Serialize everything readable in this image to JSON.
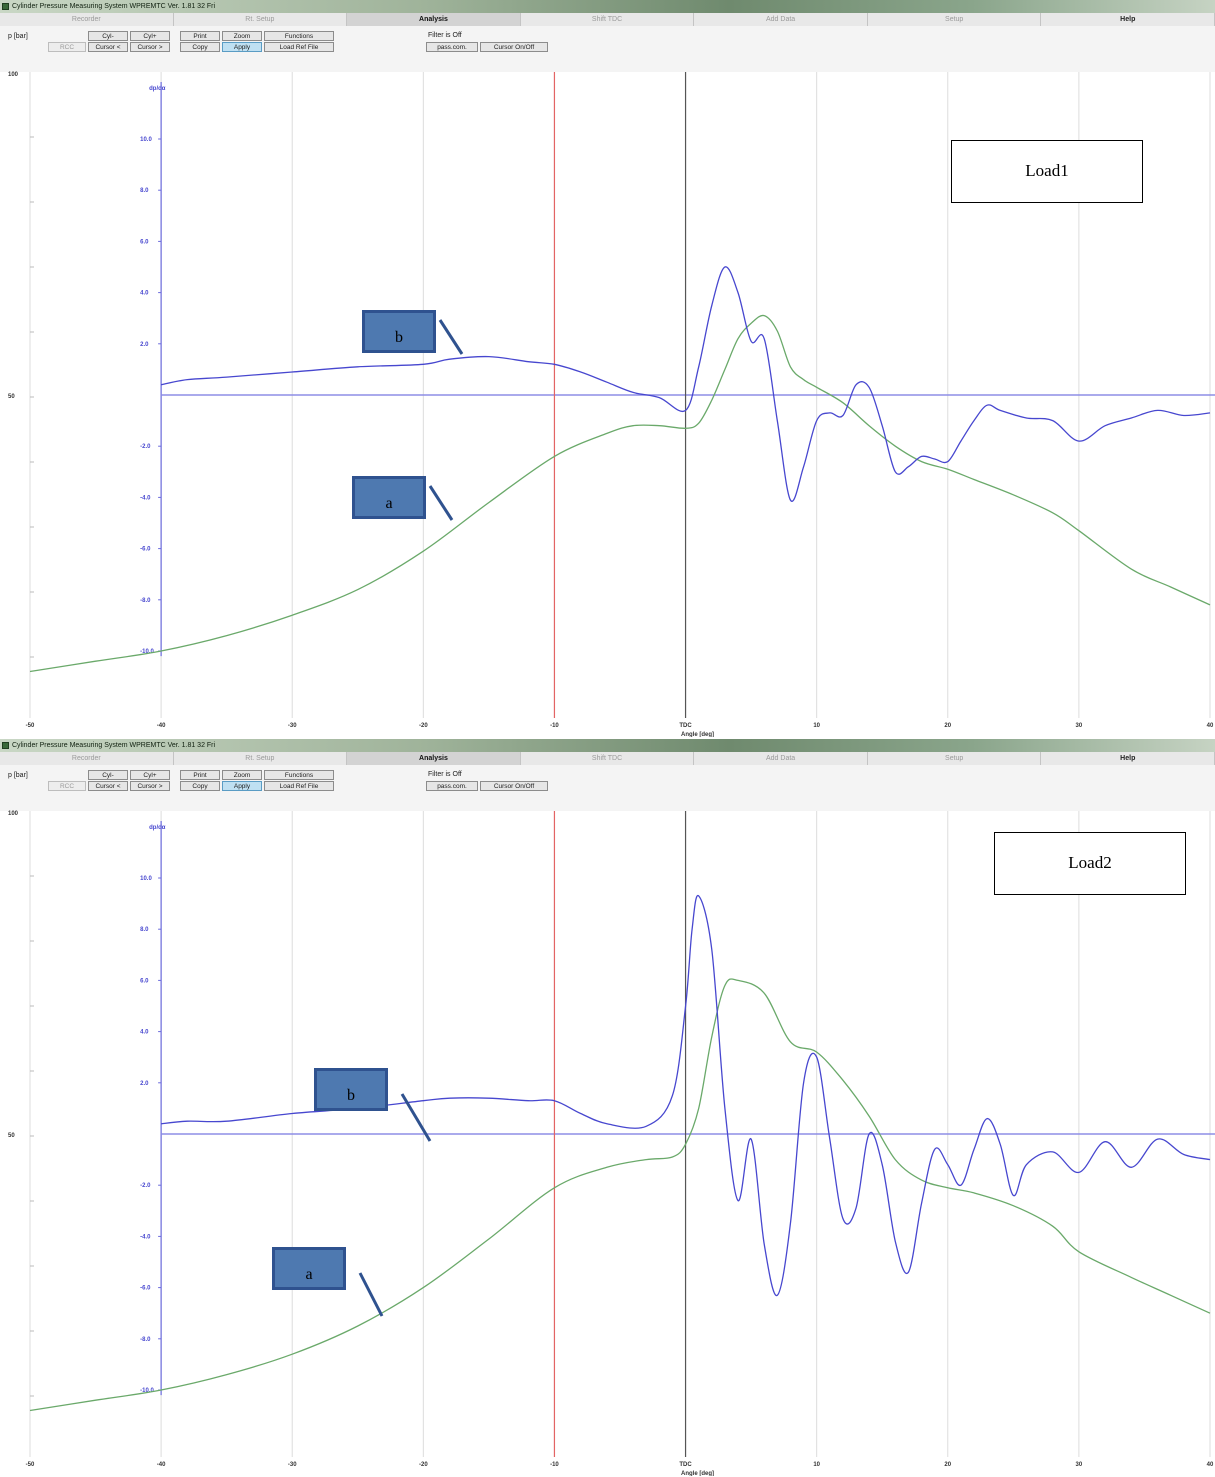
{
  "titlebar": {
    "text": "Cylinder Pressure Measuring System WPREMTC Ver. 1.81 32 Fri"
  },
  "tabs": [
    "Recorder",
    "Rt. Setup",
    "Analysis",
    "Shift TDC",
    "Add Data",
    "Setup",
    "Help"
  ],
  "toolbar": {
    "p_unit": "p [bar]",
    "rcc": "RCC",
    "cyl_minus": "Cyl-",
    "cyl_plus": "Cyl+",
    "print": "Print",
    "zoom": "Zoom",
    "functions": "Functions",
    "cursor_left": "Cursor <",
    "cursor_right": "Cursor >",
    "copy": "Copy",
    "apply": "Apply",
    "load_ref": "Load Ref File",
    "filter": "Filter is Off",
    "pass_com": "pass.com.",
    "cursor_onoff": "Cursor On/Off"
  },
  "colors": {
    "pressure_curve": "#6aa96a",
    "derivative_curve": "#4747cf",
    "derivative_axis": "#6b6bdd",
    "cursor_line": "#e36464",
    "tdc_line": "#555555",
    "grid": "#dcdcdc",
    "annotation_fill": "#4e79b0",
    "annotation_border": "#2f528f"
  },
  "chart_data": [
    {
      "type": "line",
      "title": "Load1",
      "xlabel": "Angle [deg]",
      "ylabel": "p [bar]",
      "y2label": "dp/dα",
      "xlim": [
        -50,
        40
      ],
      "x_ticks": [
        "-50",
        "-40",
        "-30",
        "-20",
        "-10",
        "TDC",
        "10",
        "20",
        "30",
        "40"
      ],
      "left_axis_ticks": [
        "100",
        "50"
      ],
      "y2lim": [
        -12,
        12
      ],
      "y2_ticks": [
        "10.0",
        "8.0",
        "6.0",
        "4.0",
        "2.0",
        "-2.0",
        "-4.0",
        "-6.0",
        "-8.0",
        "-10.0"
      ],
      "cursor_x": -10,
      "grid": true,
      "series": [
        {
          "name": "a",
          "x": [
            -50,
            -45,
            -40,
            -35,
            -30,
            -25,
            -20,
            -15,
            -10,
            -6,
            -4,
            -2,
            0,
            1,
            2,
            3,
            4,
            5,
            6,
            7,
            8,
            9,
            10,
            12,
            14,
            16,
            18,
            20,
            22,
            25,
            28,
            30,
            34,
            37,
            40
          ],
          "y": [
            -10.8,
            -10.4,
            -10.0,
            -9.4,
            -8.6,
            -7.6,
            -6.1,
            -4.2,
            -2.4,
            -1.5,
            -1.2,
            -1.2,
            -1.3,
            -1.1,
            -0.2,
            1.0,
            2.2,
            2.8,
            3.1,
            2.5,
            1.1,
            0.6,
            0.3,
            -0.3,
            -1.2,
            -2.0,
            -2.6,
            -2.9,
            -3.3,
            -3.9,
            -4.6,
            -5.3,
            -6.8,
            -7.5,
            -8.2
          ]
        },
        {
          "name": "b",
          "x": [
            -40,
            -38,
            -35,
            -30,
            -25,
            -20,
            -18,
            -15,
            -12,
            -10,
            -8,
            -6,
            -4,
            -2,
            0,
            1,
            2,
            3,
            4,
            5,
            6,
            7,
            8,
            9,
            10,
            11,
            12,
            13,
            14,
            15,
            16,
            17,
            18,
            19,
            20,
            21,
            22,
            23,
            24,
            26,
            28,
            30,
            32,
            34,
            36,
            38,
            40
          ],
          "y": [
            0.4,
            0.6,
            0.7,
            0.9,
            1.1,
            1.2,
            1.4,
            1.5,
            1.3,
            1.2,
            0.9,
            0.5,
            0.1,
            -0.1,
            -0.6,
            1.1,
            3.5,
            5.0,
            4.0,
            2.1,
            2.2,
            -1.0,
            -4.1,
            -2.8,
            -1.0,
            -0.7,
            -0.8,
            0.4,
            0.3,
            -1.2,
            -3.0,
            -2.8,
            -2.4,
            -2.5,
            -2.6,
            -1.8,
            -1.0,
            -0.4,
            -0.6,
            -0.9,
            -1.0,
            -1.8,
            -1.2,
            -0.9,
            -0.6,
            -0.8,
            -0.7
          ]
        }
      ]
    },
    {
      "type": "line",
      "title": "Load2",
      "xlabel": "Angle [deg]",
      "ylabel": "p [bar]",
      "y2label": "dp/dα",
      "xlim": [
        -50,
        40
      ],
      "x_ticks": [
        "-50",
        "-40",
        "-30",
        "-20",
        "-10",
        "TDC",
        "10",
        "20",
        "30",
        "40"
      ],
      "left_axis_ticks": [
        "100",
        "50"
      ],
      "y2lim": [
        -12,
        12
      ],
      "y2_ticks": [
        "10.0",
        "8.0",
        "6.0",
        "4.0",
        "2.0",
        "-2.0",
        "-4.0",
        "-6.0",
        "-8.0",
        "-10.0"
      ],
      "cursor_x": -10,
      "grid": true,
      "series": [
        {
          "name": "a",
          "x": [
            -50,
            -45,
            -40,
            -35,
            -30,
            -25,
            -20,
            -15,
            -10,
            -6,
            -3,
            -1,
            0,
            1,
            2,
            3,
            4,
            6,
            8,
            10,
            12,
            14,
            16,
            18,
            20,
            22,
            25,
            28,
            30,
            34,
            37,
            40
          ],
          "y": [
            -10.8,
            -10.4,
            -10.0,
            -9.4,
            -8.6,
            -7.5,
            -6.0,
            -4.1,
            -2.1,
            -1.3,
            -1.0,
            -0.9,
            -0.4,
            1.0,
            3.8,
            5.8,
            6.0,
            5.5,
            3.6,
            3.2,
            2.1,
            0.7,
            -1.0,
            -1.8,
            -2.1,
            -2.3,
            -2.8,
            -3.6,
            -4.6,
            -5.6,
            -6.3,
            -7.0
          ]
        },
        {
          "name": "b",
          "x": [
            -40,
            -38,
            -35,
            -30,
            -25,
            -20,
            -18,
            -15,
            -12,
            -10,
            -8,
            -6,
            -3,
            -1,
            0,
            0.5,
            1,
            2,
            3,
            4,
            5,
            6,
            7,
            8,
            9,
            10,
            11,
            12,
            13,
            14,
            15,
            16,
            17,
            18,
            19,
            20,
            21,
            22,
            23,
            24,
            25,
            26,
            28,
            30,
            32,
            34,
            36,
            38,
            40
          ],
          "y": [
            0.4,
            0.5,
            0.5,
            0.8,
            1.0,
            1.3,
            1.4,
            1.4,
            1.3,
            1.3,
            0.8,
            0.4,
            0.3,
            1.5,
            5.0,
            8.0,
            9.3,
            7.2,
            1.0,
            -2.6,
            -0.2,
            -4.3,
            -6.3,
            -3.5,
            2.0,
            3.0,
            -0.2,
            -3.3,
            -2.9,
            0.0,
            -1.2,
            -4.2,
            -5.4,
            -2.7,
            -0.6,
            -1.2,
            -2.0,
            -0.6,
            0.6,
            -0.4,
            -2.4,
            -1.2,
            -0.7,
            -1.5,
            -0.3,
            -1.3,
            -0.2,
            -0.8,
            -1.0
          ]
        }
      ]
    }
  ]
}
